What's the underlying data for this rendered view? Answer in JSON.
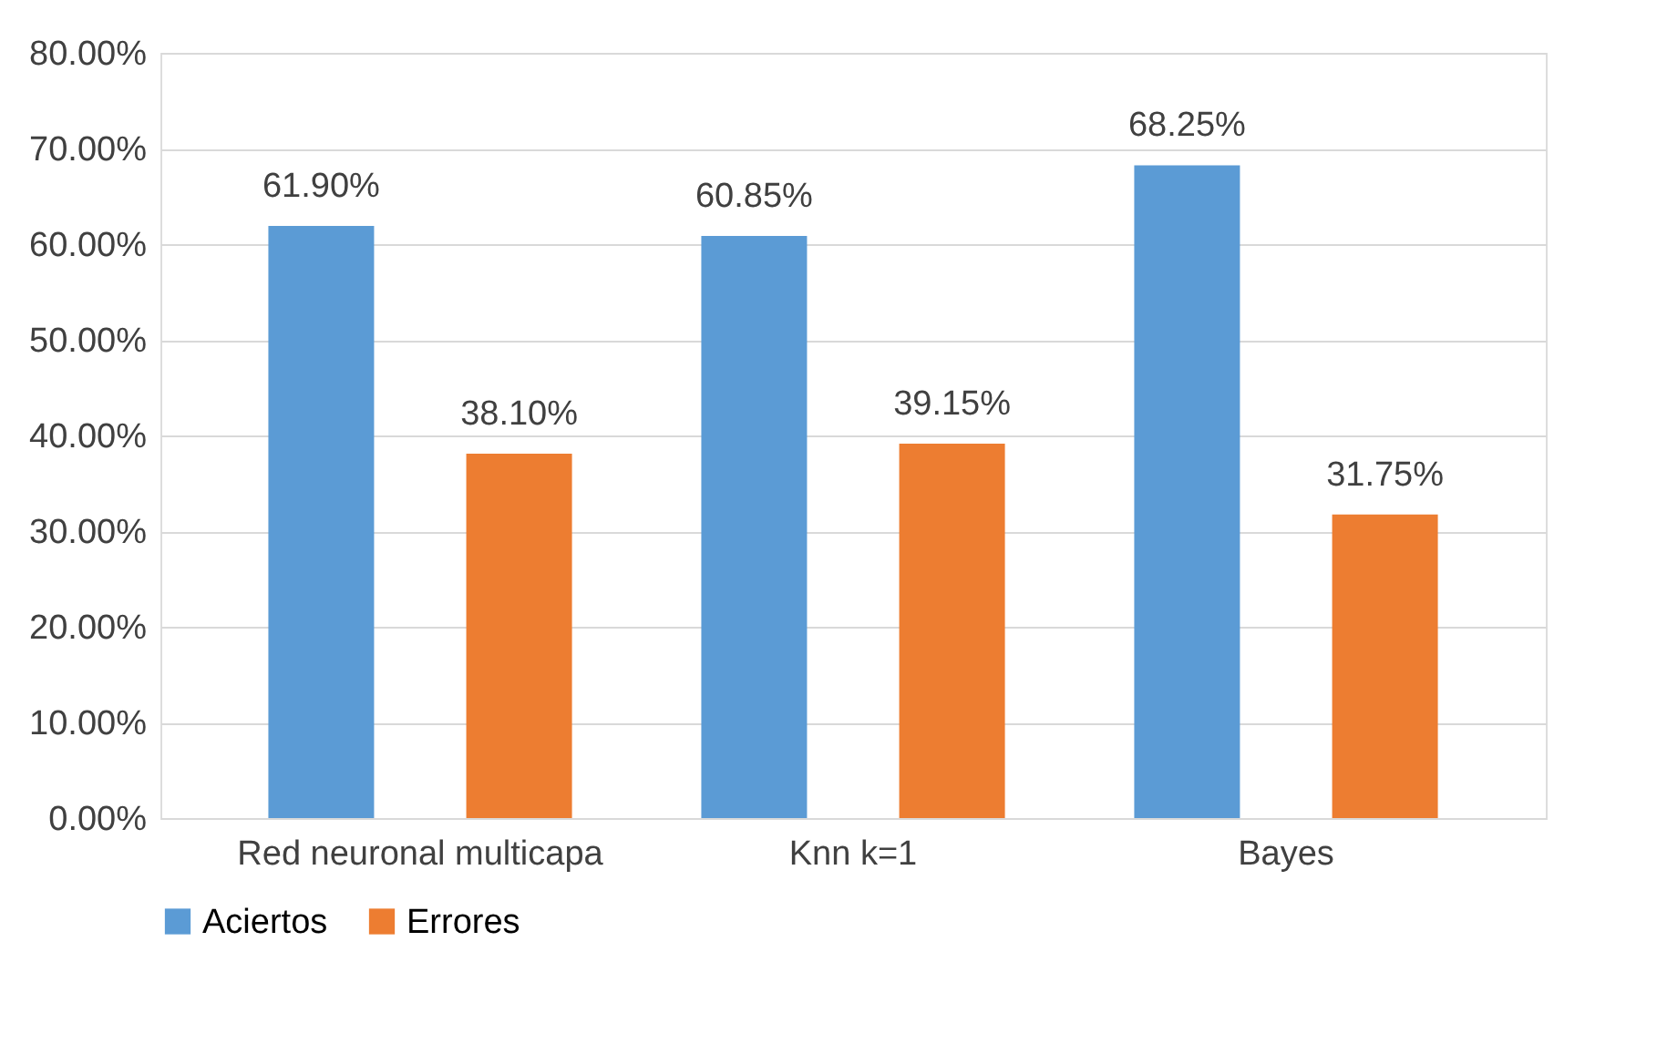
{
  "chart_data": {
    "type": "bar",
    "categories": [
      "Red neuronal multicapa",
      "Knn k=1",
      "Bayes"
    ],
    "series": [
      {
        "name": "Aciertos",
        "color": "#5b9bd5",
        "values": [
          61.9,
          60.85,
          68.25
        ],
        "value_labels": [
          "61.90%",
          "60.85%",
          "68.25%"
        ]
      },
      {
        "name": "Errores",
        "color": "#ed7d31",
        "values": [
          38.1,
          39.15,
          31.75
        ],
        "value_labels": [
          "38.10%",
          "39.15%",
          "31.75%"
        ]
      }
    ],
    "ylim": [
      0,
      80
    ],
    "yticks": [
      {
        "value": 0,
        "label": "0.00%"
      },
      {
        "value": 10,
        "label": "10.00%"
      },
      {
        "value": 20,
        "label": "20.00%"
      },
      {
        "value": 30,
        "label": "30.00%"
      },
      {
        "value": 40,
        "label": "40.00%"
      },
      {
        "value": 50,
        "label": "50.00%"
      },
      {
        "value": 60,
        "label": "60.00%"
      },
      {
        "value": 70,
        "label": "70.00%"
      },
      {
        "value": 80,
        "label": "80.00%"
      }
    ],
    "grid": "y",
    "legend": "bottom"
  }
}
